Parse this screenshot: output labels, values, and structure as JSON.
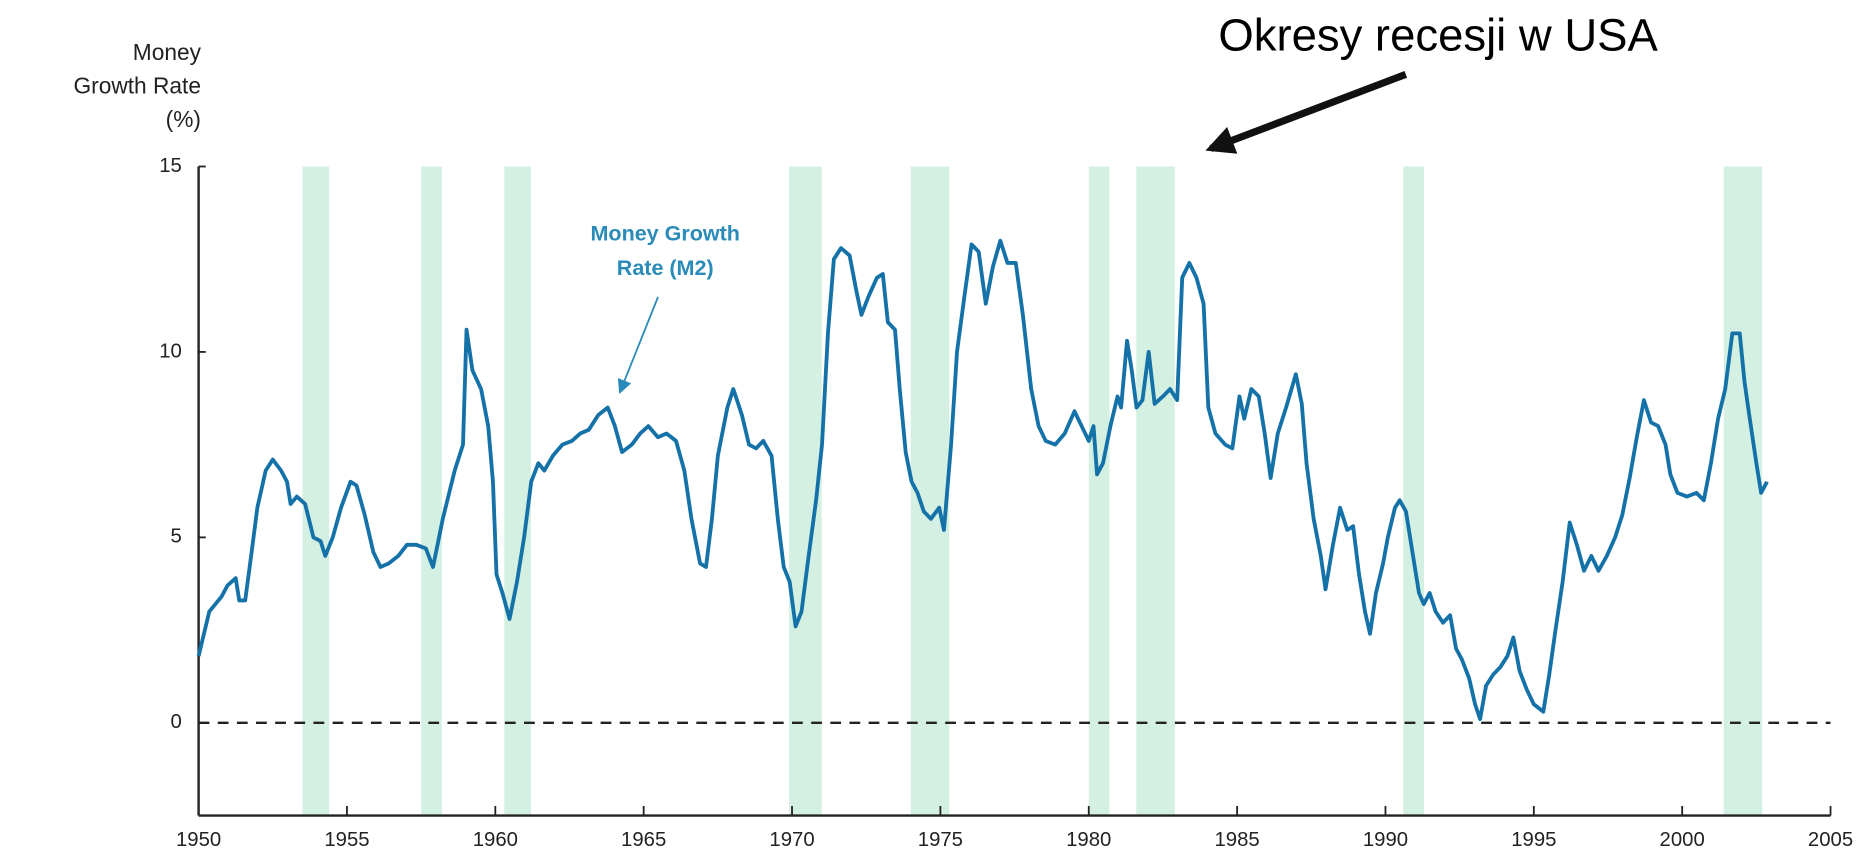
{
  "chart_data": {
    "type": "line",
    "y_label": [
      "Money",
      "Growth Rate",
      "(%)"
    ],
    "annotations": [
      {
        "text": [
          "Money Growth",
          "Rate (M2)"
        ]
      },
      {
        "text": [
          "Okresy recesji w USA"
        ]
      }
    ],
    "xlim": [
      1950,
      2005
    ],
    "xticks": [
      1950,
      1955,
      1960,
      1965,
      1970,
      1975,
      1980,
      1985,
      1990,
      1995,
      2000,
      2005
    ],
    "ylim": [
      -2.5,
      15
    ],
    "yticks": [
      0,
      5,
      10,
      15
    ],
    "recession_color": "#d4f0e2",
    "recessions": [
      [
        1953.5,
        1954.4
      ],
      [
        1957.5,
        1958.2
      ],
      [
        1960.3,
        1961.2
      ],
      [
        1969.9,
        1971.0
      ],
      [
        1974.0,
        1975.3
      ],
      [
        1980.0,
        1980.7
      ],
      [
        1981.6,
        1982.9
      ],
      [
        1990.6,
        1991.3
      ],
      [
        2001.4,
        2002.7
      ]
    ],
    "x": [
      1950.0,
      1950.36,
      1950.77,
      1950.97,
      1951.25,
      1951.37,
      1951.57,
      1951.77,
      1951.98,
      1952.26,
      1952.5,
      1952.78,
      1952.98,
      1953.1,
      1953.31,
      1953.59,
      1953.87,
      1954.11,
      1954.27,
      1954.52,
      1954.8,
      1955.12,
      1955.32,
      1955.6,
      1955.89,
      1956.13,
      1956.41,
      1956.73,
      1957.02,
      1957.34,
      1957.66,
      1957.9,
      1958.23,
      1958.63,
      1958.91,
      1959.03,
      1959.23,
      1959.52,
      1959.76,
      1959.92,
      1960.04,
      1960.24,
      1960.48,
      1960.73,
      1960.97,
      1961.21,
      1961.45,
      1961.65,
      1961.94,
      1962.26,
      1962.58,
      1962.86,
      1963.15,
      1963.47,
      1963.79,
      1964.03,
      1964.27,
      1964.6,
      1964.88,
      1965.16,
      1965.48,
      1965.77,
      1966.09,
      1966.37,
      1966.61,
      1966.9,
      1967.1,
      1967.3,
      1967.5,
      1967.82,
      1968.02,
      1968.31,
      1968.55,
      1968.79,
      1969.03,
      1969.31,
      1969.52,
      1969.72,
      1969.92,
      1970.12,
      1970.32,
      1970.56,
      1970.81,
      1971.01,
      1971.21,
      1971.41,
      1971.65,
      1971.94,
      1972.18,
      1972.34,
      1972.58,
      1972.86,
      1973.06,
      1973.23,
      1973.47,
      1973.63,
      1973.83,
      1974.03,
      1974.23,
      1974.44,
      1974.68,
      1974.96,
      1975.12,
      1975.36,
      1975.56,
      1975.81,
      1976.05,
      1976.29,
      1976.53,
      1976.77,
      1977.02,
      1977.26,
      1977.54,
      1977.78,
      1978.06,
      1978.31,
      1978.55,
      1978.87,
      1979.19,
      1979.52,
      1979.76,
      1980.0,
      1980.16,
      1980.28,
      1980.48,
      1980.73,
      1980.97,
      1981.09,
      1981.29,
      1981.45,
      1981.61,
      1981.81,
      1982.02,
      1982.22,
      1982.5,
      1982.74,
      1982.98,
      1983.15,
      1983.39,
      1983.63,
      1983.87,
      1984.03,
      1984.27,
      1984.6,
      1984.84,
      1985.08,
      1985.24,
      1985.48,
      1985.73,
      1985.93,
      1986.13,
      1986.37,
      1986.65,
      1986.98,
      1987.18,
      1987.34,
      1987.58,
      1987.82,
      1987.98,
      1988.23,
      1988.47,
      1988.71,
      1988.91,
      1989.11,
      1989.31,
      1989.48,
      1989.68,
      1989.92,
      1990.08,
      1990.32,
      1990.48,
      1990.69,
      1990.93,
      1991.13,
      1991.29,
      1991.49,
      1991.69,
      1991.94,
      1992.18,
      1992.38,
      1992.58,
      1992.82,
      1993.02,
      1993.19,
      1993.39,
      1993.63,
      1993.87,
      1994.11,
      1994.31,
      1994.52,
      1994.76,
      1995.0,
      1995.32,
      1995.52,
      1995.73,
      1995.97,
      1996.21,
      1996.45,
      1996.69,
      1996.94,
      1997.18,
      1997.46,
      1997.74,
      1997.98,
      1998.23,
      1998.47,
      1998.71,
      1998.95,
      1999.19,
      1999.44,
      1999.6,
      1999.84,
      2000.16,
      2000.48,
      2000.73,
      2000.97,
      2001.21,
      2001.45,
      2001.69,
      2001.94,
      2002.1,
      2002.26,
      2002.5,
      2002.66,
      2002.86
    ],
    "series": [
      {
        "name": "Money Growth Rate (M2)",
        "color": "#1572a8",
        "values": [
          1.8,
          3.0,
          3.4,
          3.7,
          3.9,
          3.3,
          3.3,
          4.5,
          5.8,
          6.8,
          7.1,
          6.8,
          6.5,
          5.9,
          6.1,
          5.9,
          5.0,
          4.9,
          4.5,
          5.0,
          5.8,
          6.5,
          6.4,
          5.6,
          4.6,
          4.2,
          4.3,
          4.5,
          4.8,
          4.8,
          4.7,
          4.2,
          5.5,
          6.8,
          7.5,
          10.6,
          9.5,
          9.0,
          8.0,
          6.5,
          4.0,
          3.5,
          2.8,
          3.8,
          5.0,
          6.5,
          7.0,
          6.8,
          7.2,
          7.5,
          7.6,
          7.8,
          7.9,
          8.3,
          8.5,
          8.0,
          7.3,
          7.5,
          7.8,
          8.0,
          7.7,
          7.8,
          7.6,
          6.8,
          5.5,
          4.3,
          4.2,
          5.5,
          7.2,
          8.5,
          9.0,
          8.3,
          7.5,
          7.4,
          7.6,
          7.2,
          5.5,
          4.2,
          3.8,
          2.6,
          3.0,
          4.5,
          6.0,
          7.5,
          10.5,
          12.5,
          12.8,
          12.6,
          11.6,
          11.0,
          11.5,
          12.0,
          12.1,
          10.8,
          10.6,
          9.0,
          7.3,
          6.5,
          6.2,
          5.7,
          5.5,
          5.8,
          5.2,
          7.5,
          10.0,
          11.5,
          12.9,
          12.7,
          11.3,
          12.3,
          13.0,
          12.4,
          12.4,
          11.0,
          9.0,
          8.0,
          7.6,
          7.5,
          7.8,
          8.4,
          8.0,
          7.6,
          8.0,
          6.7,
          7.0,
          8.0,
          8.8,
          8.5,
          10.3,
          9.5,
          8.5,
          8.7,
          10.0,
          8.6,
          8.8,
          9.0,
          8.7,
          12.0,
          12.4,
          12.0,
          11.3,
          8.5,
          7.8,
          7.5,
          7.4,
          8.8,
          8.2,
          9.0,
          8.8,
          7.8,
          6.6,
          7.8,
          8.5,
          9.4,
          8.6,
          7.0,
          5.5,
          4.5,
          3.6,
          4.8,
          5.8,
          5.2,
          5.3,
          4.0,
          3.0,
          2.4,
          3.5,
          4.3,
          5.0,
          5.8,
          6.0,
          5.7,
          4.5,
          3.5,
          3.2,
          3.5,
          3.0,
          2.7,
          2.9,
          2.0,
          1.7,
          1.2,
          0.5,
          0.1,
          1.0,
          1.3,
          1.5,
          1.8,
          2.3,
          1.4,
          0.9,
          0.5,
          0.3,
          1.3,
          2.5,
          3.8,
          5.4,
          4.8,
          4.1,
          4.5,
          4.1,
          4.5,
          5.0,
          5.6,
          6.6,
          7.7,
          8.7,
          8.1,
          8.0,
          7.5,
          6.7,
          6.2,
          6.1,
          6.2,
          6.0,
          7.0,
          8.2,
          9.0,
          10.5,
          10.5,
          9.2,
          8.3,
          7.0,
          6.2,
          6.5
        ]
      }
    ]
  }
}
